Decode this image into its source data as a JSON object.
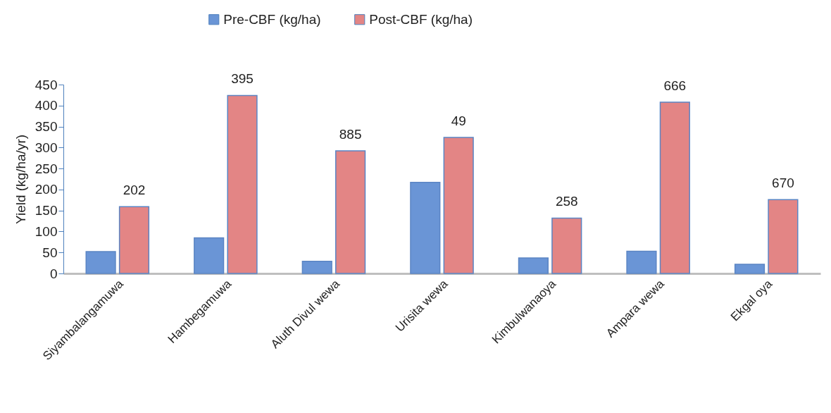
{
  "chart_data": {
    "type": "bar",
    "ylabel": "Yield (kg/ha/yr)",
    "categories": [
      "Siyambalangamuwa",
      "Hambegamuwa",
      "Aluth Divul wewa",
      "Urisita wewa",
      "Kimbulwanaoya",
      "Ampara wewa",
      "Ekgal oya"
    ],
    "series": [
      {
        "name": "Pre-CBF (kg/ha)",
        "color": "#6a95d6",
        "values": [
          52,
          85,
          29,
          217,
          37,
          53,
          22
        ]
      },
      {
        "name": "Post-CBF (kg/ha)",
        "color": "#e38585",
        "values": [
          159,
          424,
          292,
          324,
          132,
          408,
          176
        ]
      }
    ],
    "annotations": [
      {
        "text": "202",
        "x": "Siyambalangamuwa",
        "y": 159
      },
      {
        "text": "395",
        "x": "Hambegamuwa",
        "y": 424
      },
      {
        "text": "885",
        "x": "Aluth Divul wewa",
        "y": 292
      },
      {
        "text": "49",
        "x": "Urisita wewa",
        "y": 324
      },
      {
        "text": "258",
        "x": "Kimbulwanaoya",
        "y": 132
      },
      {
        "text": "666",
        "x": "Ampara wewa",
        "y": 408
      },
      {
        "text": "670",
        "x": "Ekgal oya",
        "y": 176
      }
    ],
    "ylim": [
      0,
      450
    ],
    "yticks": [
      0,
      50,
      100,
      150,
      200,
      250,
      300,
      350,
      400,
      450
    ],
    "grid": false,
    "legend": "top"
  }
}
